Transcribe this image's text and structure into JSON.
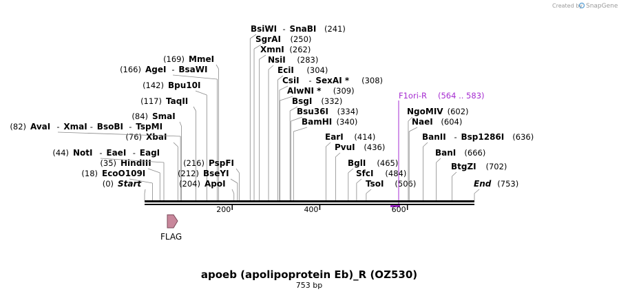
{
  "app": {
    "credit_prefix": "Created by",
    "credit_brand": "SnapGene"
  },
  "sequence": {
    "title": "apoeb (apolipoprotein Eb)_R (OZ530)",
    "length_label": "753 bp",
    "length": 753
  },
  "ruler": {
    "ticks": [
      {
        "pos": 200,
        "label": "200"
      },
      {
        "pos": 400,
        "label": "400"
      },
      {
        "pos": 600,
        "label": "600"
      }
    ]
  },
  "sites": [
    {
      "pos": 0,
      "label_pos": "(0)",
      "names": [
        "Start"
      ],
      "italic": true
    },
    {
      "pos": 18,
      "label_pos": "(18)",
      "names": [
        "EcoO109I"
      ]
    },
    {
      "pos": 35,
      "label_pos": "(35)",
      "names": [
        "HindIII"
      ]
    },
    {
      "pos": 44,
      "label_pos": "(44)",
      "names": [
        "NotI",
        "EaeI",
        "EagI"
      ]
    },
    {
      "pos": 76,
      "label_pos": "(76)",
      "names": [
        "XbaI"
      ]
    },
    {
      "pos": 82,
      "label_pos": "(82)",
      "names": [
        "AvaI",
        "XmaI",
        "BsoBI",
        "TspMI"
      ]
    },
    {
      "pos": 84,
      "label_pos": "(84)",
      "names": [
        "SmaI"
      ]
    },
    {
      "pos": 117,
      "label_pos": "(117)",
      "names": [
        "TaqII"
      ]
    },
    {
      "pos": 142,
      "label_pos": "(142)",
      "names": [
        "Bpu10I"
      ]
    },
    {
      "pos": 166,
      "label_pos": "(166)",
      "names": [
        "AgeI",
        "BsaWI"
      ]
    },
    {
      "pos": 169,
      "label_pos": "(169)",
      "names": [
        "MmeI"
      ]
    },
    {
      "pos": 204,
      "label_pos": "(204)",
      "names": [
        "ApoI"
      ]
    },
    {
      "pos": 212,
      "label_pos": "(212)",
      "names": [
        "BseYI"
      ]
    },
    {
      "pos": 216,
      "label_pos": "(216)",
      "names": [
        "PspFI"
      ]
    },
    {
      "pos": 241,
      "label_pos": "(241)",
      "names": [
        "BsiWI",
        "SnaBI"
      ]
    },
    {
      "pos": 250,
      "label_pos": "(250)",
      "names": [
        "SgrAI"
      ]
    },
    {
      "pos": 262,
      "label_pos": "(262)",
      "names": [
        "XmnI"
      ]
    },
    {
      "pos": 283,
      "label_pos": "(283)",
      "names": [
        "NsiI"
      ]
    },
    {
      "pos": 304,
      "label_pos": "(304)",
      "names": [
        "EciI"
      ]
    },
    {
      "pos": 308,
      "label_pos": "(308)",
      "names": [
        "CsiI",
        "SexAI *"
      ]
    },
    {
      "pos": 309,
      "label_pos": "(309)",
      "names": [
        "AlwNI *"
      ]
    },
    {
      "pos": 332,
      "label_pos": "(332)",
      "names": [
        "BsgI"
      ]
    },
    {
      "pos": 334,
      "label_pos": "(334)",
      "names": [
        "Bsu36I"
      ]
    },
    {
      "pos": 340,
      "label_pos": "(340)",
      "names": [
        "BamHI"
      ]
    },
    {
      "pos": 414,
      "label_pos": "(414)",
      "names": [
        "EarI"
      ]
    },
    {
      "pos": 436,
      "label_pos": "(436)",
      "names": [
        "PvuI"
      ]
    },
    {
      "pos": 465,
      "label_pos": "(465)",
      "names": [
        "BglI"
      ]
    },
    {
      "pos": 484,
      "label_pos": "(484)",
      "names": [
        "SfcI"
      ]
    },
    {
      "pos": 506,
      "label_pos": "(506)",
      "names": [
        "TsoI"
      ]
    },
    {
      "pos": 602,
      "label_pos": "(602)",
      "names": [
        "NgoMIV"
      ]
    },
    {
      "pos": 604,
      "label_pos": "(604)",
      "names": [
        "NaeI"
      ]
    },
    {
      "pos": 636,
      "label_pos": "(636)",
      "names": [
        "BanII",
        "Bsp1286I"
      ]
    },
    {
      "pos": 666,
      "label_pos": "(666)",
      "names": [
        "BanI"
      ]
    },
    {
      "pos": 702,
      "label_pos": "(702)",
      "names": [
        "BtgZI"
      ]
    },
    {
      "pos": 753,
      "label_pos": "(753)",
      "names": [
        "End"
      ],
      "italic": true
    }
  ],
  "primer": {
    "name": "F1ori-R",
    "range": "(564 .. 583)",
    "start": 564,
    "end": 583,
    "color": "#a52bd0"
  },
  "features": [
    {
      "name": "FLAG",
      "start": 46,
      "end": 69,
      "color": "#c8879b",
      "direction": "forward"
    }
  ]
}
